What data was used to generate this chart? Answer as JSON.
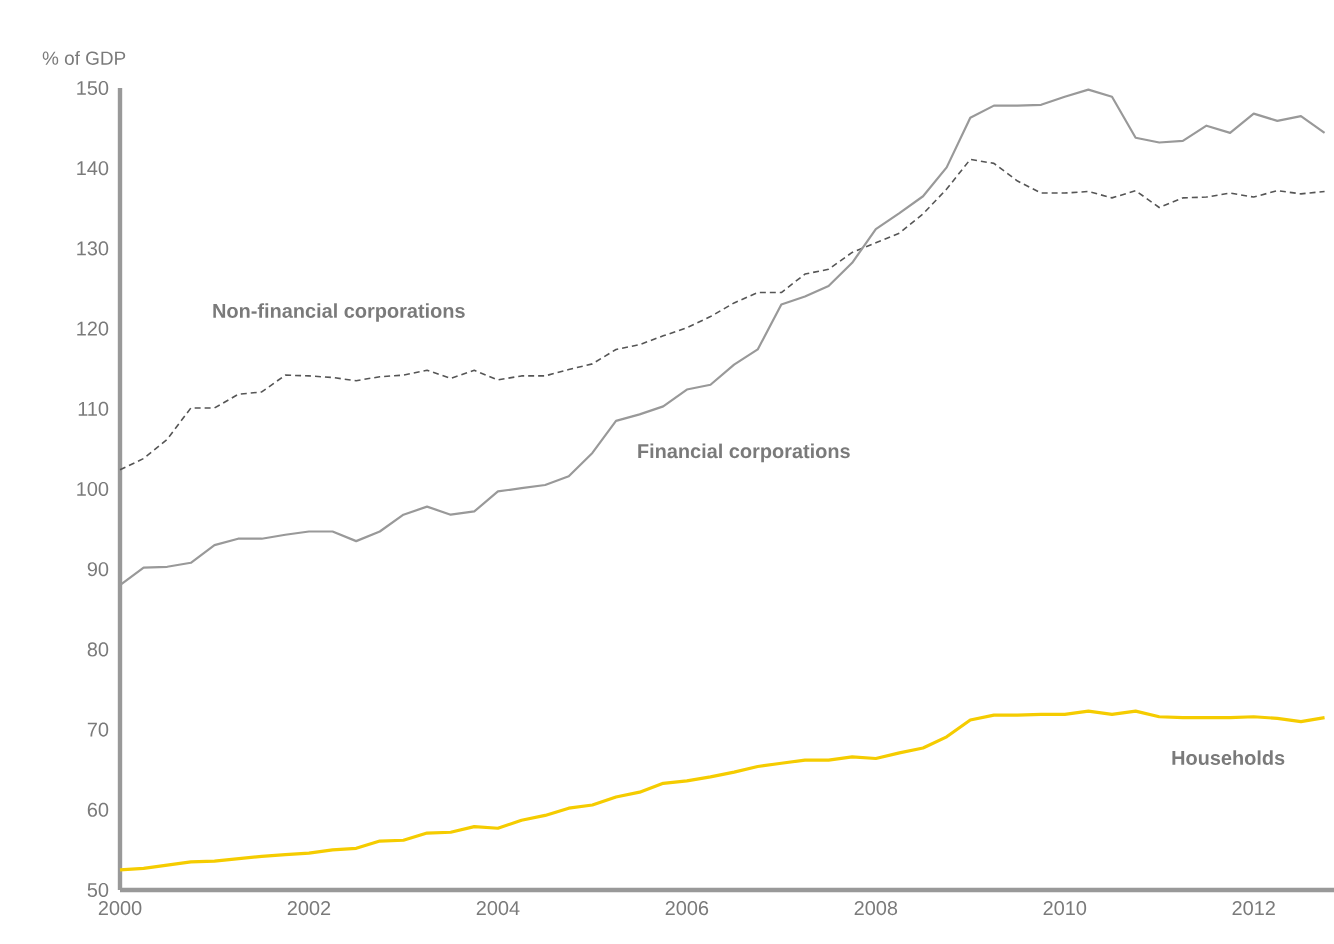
{
  "chart_data": {
    "type": "line",
    "ylabel": "% of GDP",
    "x": [
      2000,
      2000.25,
      2000.5,
      2000.75,
      2001,
      2001.25,
      2001.5,
      2001.75,
      2002,
      2002.25,
      2002.5,
      2002.75,
      2003,
      2003.25,
      2003.5,
      2003.75,
      2004,
      2004.25,
      2004.5,
      2004.75,
      2005,
      2005.25,
      2005.5,
      2005.75,
      2006,
      2006.25,
      2006.5,
      2006.75,
      2007,
      2007.25,
      2007.5,
      2007.75,
      2008,
      2008.25,
      2008.5,
      2008.75,
      2009,
      2009.25,
      2009.5,
      2009.75,
      2010,
      2010.25,
      2010.5,
      2010.75,
      2011,
      2011.25,
      2011.5,
      2011.75,
      2012,
      2012.25,
      2012.5,
      2012.75
    ],
    "series": [
      {
        "name": "Non-financial corporations",
        "color": "#555555",
        "line_style": "dashed",
        "values": [
          102.4,
          103.8,
          106.2,
          110.1,
          110.1,
          111.8,
          112.1,
          114.2,
          114.1,
          113.9,
          113.5,
          114.0,
          114.2,
          114.8,
          113.8,
          114.8,
          113.6,
          114.1,
          114.1,
          114.9,
          115.6,
          117.4,
          118.0,
          119.1,
          120.1,
          121.5,
          123.2,
          124.5,
          124.5,
          126.8,
          127.4,
          129.5,
          130.7,
          131.9,
          134.3,
          137.4,
          141.1,
          140.6,
          138.4,
          136.9,
          136.9,
          137.1,
          136.3,
          137.2,
          135.1,
          136.3,
          136.4,
          136.9,
          136.4,
          137.2,
          136.8,
          137.1
        ]
      },
      {
        "name": "Financial corporations",
        "color": "#999999",
        "line_style": "solid",
        "values": [
          88.0,
          90.2,
          90.3,
          90.8,
          93.0,
          93.8,
          93.8,
          94.3,
          94.7,
          94.7,
          93.5,
          94.7,
          96.8,
          97.8,
          96.8,
          97.2,
          99.7,
          100.1,
          100.5,
          101.6,
          104.5,
          108.5,
          109.3,
          110.3,
          112.4,
          113.0,
          115.5,
          117.4,
          123.0,
          124.0,
          125.3,
          128.2,
          132.4,
          134.4,
          136.5,
          140.1,
          146.3,
          147.8,
          147.8,
          147.9,
          148.9,
          149.8,
          148.9,
          143.8,
          143.2,
          143.4,
          145.3,
          144.4,
          146.8,
          145.9,
          146.5,
          144.4
        ]
      },
      {
        "name": "Households",
        "color": "#f5cc00",
        "line_style": "solid",
        "values": [
          52.5,
          52.7,
          53.1,
          53.5,
          53.6,
          53.9,
          54.2,
          54.4,
          54.6,
          55.0,
          55.2,
          56.1,
          56.2,
          57.1,
          57.2,
          57.9,
          57.7,
          58.7,
          59.3,
          60.2,
          60.6,
          61.6,
          62.2,
          63.3,
          63.6,
          64.1,
          64.7,
          65.4,
          65.8,
          66.2,
          66.2,
          66.6,
          66.4,
          67.1,
          67.7,
          69.1,
          71.2,
          71.8,
          71.8,
          71.9,
          71.9,
          72.3,
          71.9,
          72.3,
          71.6,
          71.5,
          71.5,
          71.5,
          71.6,
          71.4,
          71.0,
          71.5
        ]
      }
    ],
    "xlim": [
      2000,
      2012.85
    ],
    "ylim": [
      50,
      150
    ],
    "xticks": [
      2000,
      2002,
      2004,
      2006,
      2008,
      2010,
      2012
    ],
    "yticks": [
      50,
      60,
      70,
      80,
      90,
      100,
      110,
      120,
      130,
      140,
      150
    ],
    "grid": false,
    "legend": false,
    "marker": "none"
  }
}
